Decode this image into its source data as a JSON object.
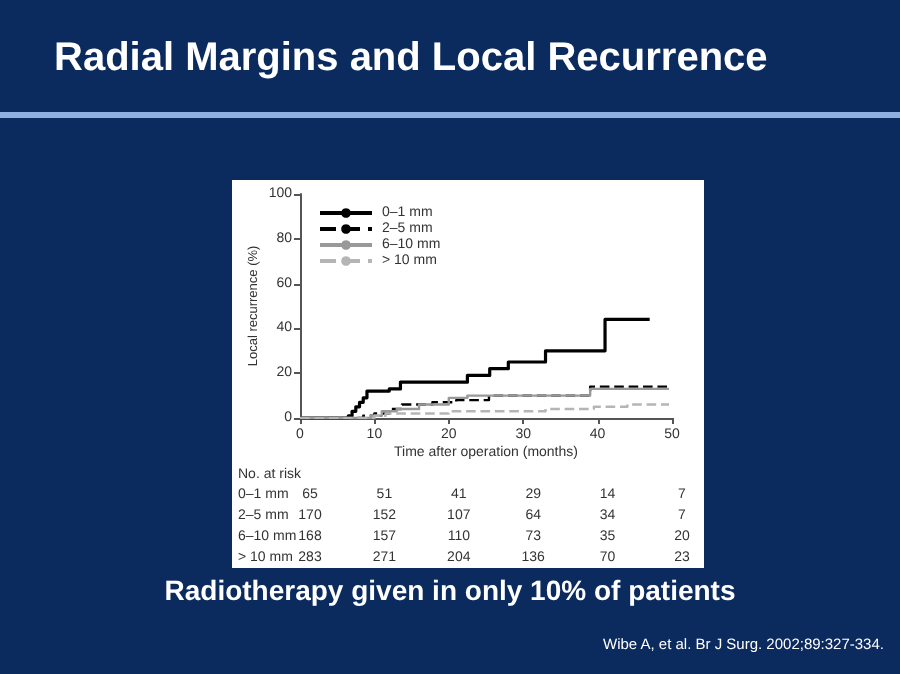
{
  "chart_data": {
    "type": "step",
    "title": "Radial Margins and Local Recurrence",
    "xlabel": "Time after operation (months)",
    "ylabel": "Local recurrence (%)",
    "xlim": [
      0,
      50
    ],
    "xticks": [
      0,
      10,
      20,
      30,
      40,
      50
    ],
    "ylim": [
      0,
      100
    ],
    "yticks": [
      0,
      20,
      40,
      60,
      80,
      100
    ],
    "grid": false,
    "legend": "top left",
    "marker": "none",
    "series": [
      {
        "name": "0–1 mm",
        "color": "#000000",
        "line_style": "solid",
        "x": [
          0,
          6.5,
          7,
          7.5,
          8,
          8.5,
          9,
          12,
          13.5,
          22.5,
          25.5,
          28,
          33,
          41,
          47
        ],
        "values": [
          0,
          1,
          3,
          5,
          7,
          9,
          12,
          13,
          16,
          19,
          22,
          25,
          30,
          44,
          44
        ]
      },
      {
        "name": "2–5 mm",
        "color": "#000000",
        "line_style": "dashed",
        "x": [
          0,
          8.5,
          10,
          12,
          13.7,
          17.8,
          21,
          25.4,
          39,
          49.6
        ],
        "values": [
          0,
          1,
          2,
          4,
          6,
          7,
          8,
          10,
          14,
          14
        ]
      },
      {
        "name": "6–10 mm",
        "color": "#999999",
        "line_style": "solid",
        "x": [
          0,
          9.5,
          11,
          13,
          16,
          20,
          22.5,
          39,
          49.6
        ],
        "values": [
          0,
          1,
          3,
          4,
          6,
          9,
          10,
          13,
          13
        ]
      },
      {
        "name": "> 10 mm",
        "color": "#b5b5b5",
        "line_style": "dashed",
        "x": [
          0,
          10,
          11.5,
          20,
          33,
          39.5,
          44,
          49.6
        ],
        "values": [
          0,
          1,
          2,
          3,
          4,
          5,
          6,
          6
        ]
      }
    ],
    "annotations": [
      "No. at risk",
      "0–1 mm",
      "65",
      "51",
      "41",
      "29",
      "14",
      "7",
      "2–5 mm",
      "170",
      "152",
      "107",
      "64",
      "34",
      "7",
      "6–10 mm",
      "168",
      "157",
      "110",
      "73",
      "35",
      "20",
      "> 10 mm",
      "283",
      "271",
      "204",
      "136",
      "70",
      "23",
      "Radiotherapy given in only 10% of patients",
      "Wibe A, et al. Br J Surg. 2002;89:327-334."
    ]
  }
}
